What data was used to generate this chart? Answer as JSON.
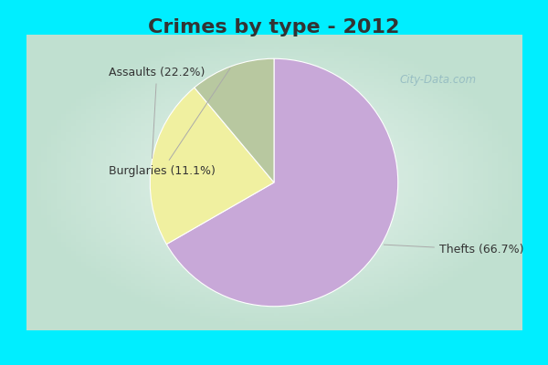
{
  "title": "Crimes by type - 2012",
  "slices": [
    {
      "label": "Thefts",
      "pct": 66.7,
      "color": "#C8A8D8"
    },
    {
      "label": "Assaults",
      "pct": 22.2,
      "color": "#F0F0A0"
    },
    {
      "label": "Burglaries",
      "pct": 11.1,
      "color": "#B8C8A0"
    }
  ],
  "border_color": "#00EEFF",
  "bg_color_center": "#E8F4EE",
  "bg_color_edge": "#C0E0D0",
  "title_fontsize": 16,
  "label_fontsize": 9,
  "title_color": "#333333",
  "label_color": "#333333",
  "watermark": "City-Data.com",
  "border_width": 8
}
